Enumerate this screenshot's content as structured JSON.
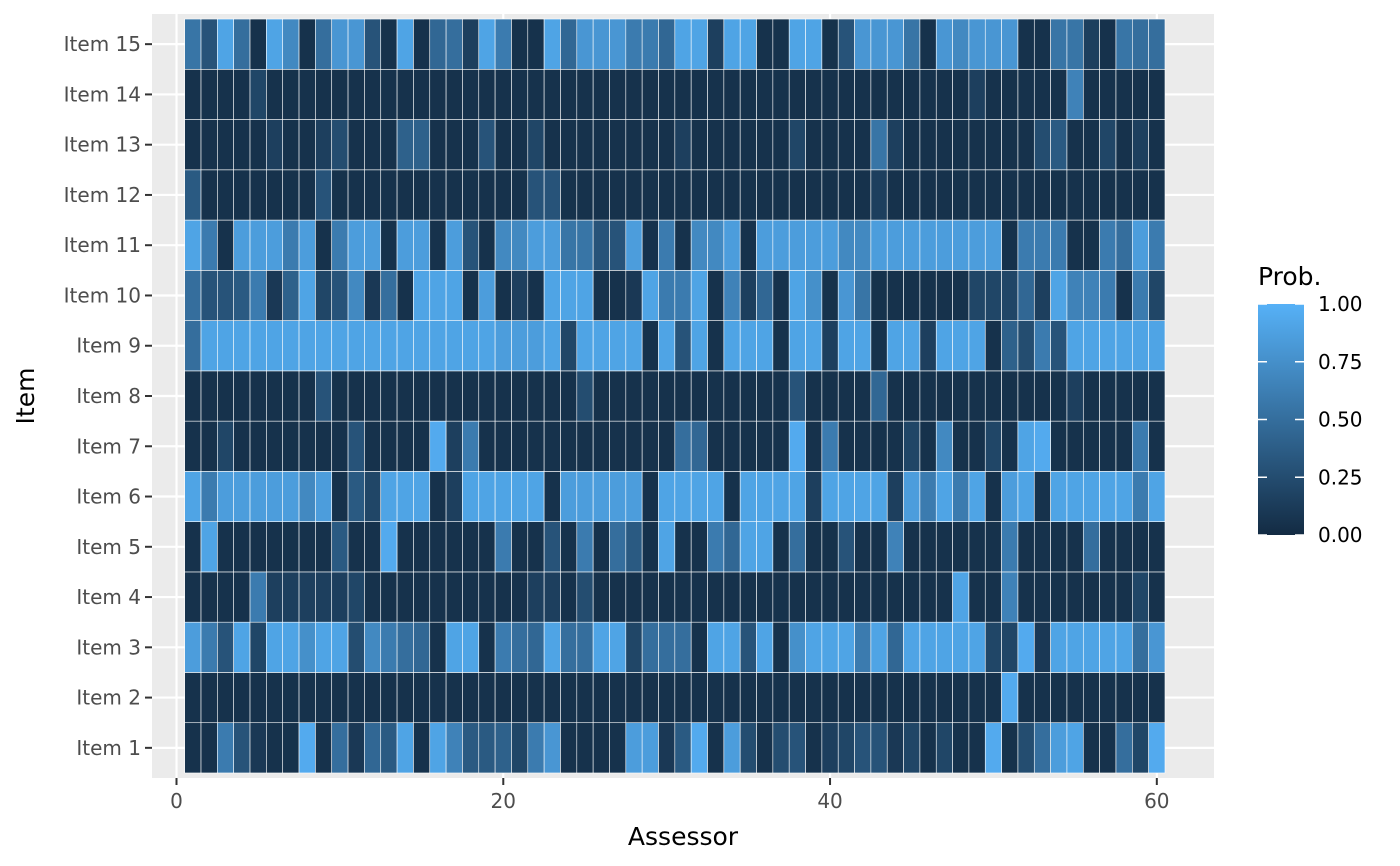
{
  "chart_data": {
    "type": "heatmap",
    "title": "",
    "xlabel": "Assessor",
    "ylabel": "Item",
    "xlim": [
      -1.5,
      63.5
    ],
    "x_ticks": [
      {
        "value": 0,
        "label": "0"
      },
      {
        "value": 20,
        "label": "20"
      },
      {
        "value": 40,
        "label": "40"
      },
      {
        "value": 60,
        "label": "60"
      }
    ],
    "x": [
      1,
      2,
      3,
      4,
      5,
      6,
      7,
      8,
      9,
      10,
      11,
      12,
      13,
      14,
      15,
      16,
      17,
      18,
      19,
      20,
      21,
      22,
      23,
      24,
      25,
      26,
      27,
      28,
      29,
      30,
      31,
      32,
      33,
      34,
      35,
      36,
      37,
      38,
      39,
      40,
      41,
      42,
      43,
      44,
      45,
      46,
      47,
      48,
      49,
      50,
      51,
      52,
      53,
      54,
      55,
      56,
      57,
      58,
      59,
      60
    ],
    "y": [
      "Item 1",
      "Item 2",
      "Item 3",
      "Item 4",
      "Item 5",
      "Item 6",
      "Item 7",
      "Item 8",
      "Item 9",
      "Item 10",
      "Item 11",
      "Item 12",
      "Item 13",
      "Item 14",
      "Item 15"
    ],
    "grid": true,
    "legend": {
      "title": "Prob.",
      "position": "right",
      "range": [
        0,
        1
      ],
      "ticks": [
        {
          "value": 0,
          "label": "0.00"
        },
        {
          "value": 0.25,
          "label": "0.25"
        },
        {
          "value": 0.5,
          "label": "0.50"
        },
        {
          "value": 0.75,
          "label": "0.75"
        },
        {
          "value": 1,
          "label": "1.00"
        }
      ]
    },
    "colors": {
      "low": "#132B43",
      "high": "#56B1F7",
      "panel_bg": "#EBEBEB",
      "grid_major": "#FFFFFF",
      "tile_border": "#FFFFFF"
    },
    "values": [
      [
        0.05,
        0.05,
        0.6,
        0.3,
        0.1,
        0.05,
        0.05,
        0.95,
        0.05,
        0.5,
        0.1,
        0.45,
        0.35,
        0.9,
        0.05,
        0.9,
        0.65,
        0.35,
        0.35,
        0.4,
        0.2,
        0.6,
        0.8,
        0.05,
        0.05,
        0.05,
        0.05,
        0.85,
        0.85,
        0.1,
        0.35,
        0.95,
        0.05,
        0.85,
        0.25,
        0.05,
        0.25,
        0.3,
        0.05,
        0.15,
        0.2,
        0.3,
        0.3,
        0.1,
        0.2,
        0.05,
        0.2,
        0.05,
        0.05,
        0.95,
        0.05,
        0.25,
        0.5,
        0.85,
        0.9,
        0.05,
        0.05,
        0.5,
        0.2,
        0.95
      ],
      [
        0.05,
        0.05,
        0.05,
        0.05,
        0.05,
        0.05,
        0.05,
        0.05,
        0.05,
        0.05,
        0.05,
        0.05,
        0.05,
        0.05,
        0.05,
        0.05,
        0.05,
        0.05,
        0.05,
        0.05,
        0.05,
        0.05,
        0.05,
        0.05,
        0.05,
        0.05,
        0.05,
        0.05,
        0.05,
        0.05,
        0.05,
        0.05,
        0.05,
        0.05,
        0.05,
        0.05,
        0.05,
        0.05,
        0.05,
        0.05,
        0.05,
        0.05,
        0.05,
        0.05,
        0.05,
        0.05,
        0.05,
        0.05,
        0.05,
        0.05,
        0.95,
        0.05,
        0.05,
        0.05,
        0.05,
        0.05,
        0.05,
        0.05,
        0.05,
        0.05
      ],
      [
        0.85,
        0.6,
        0.3,
        0.9,
        0.2,
        0.9,
        0.9,
        0.75,
        0.9,
        0.9,
        0.25,
        0.7,
        0.6,
        0.5,
        0.45,
        0.05,
        0.9,
        0.9,
        0.05,
        0.6,
        0.5,
        0.45,
        0.9,
        0.5,
        0.5,
        0.9,
        0.9,
        0.2,
        0.5,
        0.5,
        0.5,
        0.05,
        0.9,
        0.9,
        0.3,
        0.9,
        0.05,
        0.75,
        0.9,
        0.9,
        0.9,
        0.6,
        0.9,
        0.45,
        0.9,
        0.9,
        0.9,
        0.9,
        0.9,
        0.2,
        0.2,
        0.95,
        0.1,
        0.9,
        0.9,
        0.9,
        0.9,
        0.9,
        0.5,
        0.8
      ],
      [
        0.05,
        0.05,
        0.05,
        0.05,
        0.6,
        0.15,
        0.15,
        0.15,
        0.15,
        0.15,
        0.2,
        0.05,
        0.05,
        0.05,
        0.05,
        0.05,
        0.05,
        0.05,
        0.05,
        0.05,
        0.05,
        0.15,
        0.15,
        0.05,
        0.25,
        0.05,
        0.05,
        0.05,
        0.05,
        0.05,
        0.05,
        0.05,
        0.05,
        0.05,
        0.05,
        0.05,
        0.05,
        0.05,
        0.05,
        0.05,
        0.05,
        0.05,
        0.05,
        0.05,
        0.05,
        0.05,
        0.05,
        0.9,
        0.05,
        0.05,
        0.65,
        0.05,
        0.05,
        0.05,
        0.05,
        0.05,
        0.05,
        0.05,
        0.2,
        0.05
      ],
      [
        0.05,
        0.9,
        0.05,
        0.05,
        0.05,
        0.05,
        0.05,
        0.05,
        0.05,
        0.35,
        0.05,
        0.05,
        0.95,
        0.05,
        0.05,
        0.05,
        0.05,
        0.05,
        0.05,
        0.6,
        0.05,
        0.05,
        0.3,
        0.05,
        0.6,
        0.05,
        0.5,
        0.35,
        0.05,
        0.9,
        0.05,
        0.05,
        0.6,
        0.45,
        0.9,
        0.9,
        0.05,
        0.5,
        0.05,
        0.05,
        0.3,
        0.05,
        0.05,
        0.65,
        0.05,
        0.05,
        0.05,
        0.05,
        0.05,
        0.05,
        0.6,
        0.05,
        0.05,
        0.05,
        0.05,
        0.5,
        0.05,
        0.05,
        0.05,
        0.05
      ],
      [
        0.9,
        0.6,
        0.85,
        0.85,
        0.85,
        0.85,
        0.85,
        0.7,
        0.85,
        0.05,
        0.35,
        0.2,
        0.9,
        0.9,
        0.9,
        0.05,
        0.15,
        0.9,
        0.9,
        0.9,
        0.9,
        0.9,
        0.05,
        0.85,
        0.85,
        0.85,
        0.85,
        0.85,
        0.05,
        0.9,
        0.9,
        0.9,
        0.9,
        0.05,
        0.9,
        0.9,
        0.9,
        0.9,
        0.15,
        0.9,
        0.9,
        0.9,
        0.9,
        0.15,
        0.85,
        0.6,
        0.9,
        0.6,
        0.9,
        0.05,
        0.85,
        0.9,
        0.05,
        0.9,
        0.9,
        0.9,
        0.9,
        0.9,
        0.6,
        0.9
      ],
      [
        0.05,
        0.05,
        0.2,
        0.05,
        0.05,
        0.05,
        0.05,
        0.05,
        0.05,
        0.05,
        0.3,
        0.05,
        0.05,
        0.05,
        0.05,
        0.95,
        0.15,
        0.6,
        0.05,
        0.05,
        0.05,
        0.05,
        0.05,
        0.05,
        0.05,
        0.05,
        0.05,
        0.05,
        0.05,
        0.05,
        0.5,
        0.45,
        0.05,
        0.05,
        0.05,
        0.05,
        0.05,
        0.95,
        0.05,
        0.6,
        0.05,
        0.05,
        0.05,
        0.05,
        0.2,
        0.05,
        0.7,
        0.05,
        0.05,
        0.2,
        0.05,
        0.9,
        0.95,
        0.05,
        0.05,
        0.05,
        0.05,
        0.05,
        0.6,
        0.05
      ],
      [
        0.05,
        0.05,
        0.05,
        0.05,
        0.05,
        0.05,
        0.05,
        0.05,
        0.3,
        0.05,
        0.05,
        0.05,
        0.05,
        0.05,
        0.05,
        0.05,
        0.05,
        0.05,
        0.05,
        0.05,
        0.05,
        0.05,
        0.05,
        0.05,
        0.25,
        0.05,
        0.05,
        0.05,
        0.05,
        0.05,
        0.05,
        0.05,
        0.05,
        0.05,
        0.05,
        0.05,
        0.05,
        0.3,
        0.05,
        0.05,
        0.05,
        0.05,
        0.45,
        0.05,
        0.05,
        0.05,
        0.05,
        0.05,
        0.05,
        0.05,
        0.05,
        0.05,
        0.05,
        0.05,
        0.15,
        0.05,
        0.05,
        0.05,
        0.05,
        0.05
      ],
      [
        0.5,
        0.9,
        0.9,
        0.9,
        0.9,
        0.9,
        0.9,
        0.9,
        0.9,
        0.9,
        0.9,
        0.9,
        0.9,
        0.9,
        0.9,
        0.9,
        0.9,
        0.9,
        0.9,
        0.85,
        0.85,
        0.85,
        0.9,
        0.2,
        0.9,
        0.9,
        0.9,
        0.9,
        0.05,
        0.9,
        0.3,
        0.9,
        0.05,
        0.9,
        0.9,
        0.9,
        0.05,
        0.9,
        0.9,
        0.15,
        0.9,
        0.9,
        0.05,
        0.9,
        0.9,
        0.15,
        0.9,
        0.9,
        0.9,
        0.05,
        0.4,
        0.25,
        0.6,
        0.3,
        0.9,
        0.9,
        0.9,
        0.9,
        0.9,
        0.9
      ],
      [
        0.5,
        0.3,
        0.3,
        0.35,
        0.6,
        0.1,
        0.4,
        0.9,
        0.2,
        0.3,
        0.7,
        0.1,
        0.5,
        0.05,
        0.9,
        0.9,
        0.9,
        0.05,
        0.85,
        0.05,
        0.15,
        0.05,
        0.9,
        0.9,
        0.9,
        0.05,
        0.05,
        0.1,
        0.9,
        0.6,
        0.6,
        0.9,
        0.05,
        0.65,
        0.15,
        0.45,
        0.05,
        0.9,
        0.75,
        0.05,
        0.8,
        0.55,
        0.05,
        0.05,
        0.05,
        0.05,
        0.05,
        0.05,
        0.2,
        0.2,
        0.2,
        0.45,
        0.15,
        0.9,
        0.65,
        0.65,
        0.6,
        0.05,
        0.6,
        0.2
      ],
      [
        0.9,
        0.6,
        0.05,
        0.85,
        0.85,
        0.85,
        0.6,
        0.85,
        0.05,
        0.6,
        0.85,
        0.85,
        0.05,
        0.85,
        0.85,
        0.05,
        0.85,
        0.3,
        0.05,
        0.7,
        0.7,
        0.85,
        0.85,
        0.55,
        0.55,
        0.3,
        0.3,
        0.85,
        0.05,
        0.6,
        0.05,
        0.7,
        0.7,
        0.85,
        0.05,
        0.85,
        0.85,
        0.85,
        0.85,
        0.85,
        0.7,
        0.7,
        0.85,
        0.85,
        0.85,
        0.85,
        0.85,
        0.85,
        0.85,
        0.85,
        0.05,
        0.6,
        0.6,
        0.6,
        0.05,
        0.05,
        0.6,
        0.5,
        0.85,
        0.6
      ],
      [
        0.35,
        0.05,
        0.05,
        0.05,
        0.05,
        0.05,
        0.05,
        0.05,
        0.3,
        0.05,
        0.05,
        0.05,
        0.05,
        0.05,
        0.05,
        0.05,
        0.05,
        0.05,
        0.05,
        0.05,
        0.05,
        0.3,
        0.3,
        0.05,
        0.05,
        0.05,
        0.05,
        0.05,
        0.05,
        0.05,
        0.05,
        0.05,
        0.05,
        0.05,
        0.05,
        0.05,
        0.05,
        0.05,
        0.05,
        0.05,
        0.05,
        0.05,
        0.15,
        0.05,
        0.05,
        0.05,
        0.05,
        0.05,
        0.05,
        0.05,
        0.05,
        0.05,
        0.05,
        0.05,
        0.05,
        0.05,
        0.05,
        0.05,
        0.05,
        0.05
      ],
      [
        0.05,
        0.05,
        0.05,
        0.05,
        0.05,
        0.15,
        0.05,
        0.05,
        0.15,
        0.25,
        0.05,
        0.05,
        0.05,
        0.4,
        0.4,
        0.05,
        0.05,
        0.05,
        0.3,
        0.05,
        0.05,
        0.2,
        0.05,
        0.05,
        0.05,
        0.05,
        0.05,
        0.05,
        0.05,
        0.05,
        0.15,
        0.05,
        0.05,
        0.05,
        0.05,
        0.05,
        0.05,
        0.2,
        0.05,
        0.05,
        0.05,
        0.05,
        0.55,
        0.15,
        0.05,
        0.05,
        0.05,
        0.05,
        0.05,
        0.05,
        0.05,
        0.05,
        0.25,
        0.35,
        0.05,
        0.05,
        0.2,
        0.05,
        0.15,
        0.05
      ],
      [
        0.05,
        0.05,
        0.05,
        0.05,
        0.2,
        0.05,
        0.05,
        0.05,
        0.05,
        0.05,
        0.05,
        0.05,
        0.05,
        0.05,
        0.05,
        0.05,
        0.05,
        0.05,
        0.05,
        0.05,
        0.05,
        0.05,
        0.05,
        0.05,
        0.05,
        0.05,
        0.05,
        0.05,
        0.05,
        0.05,
        0.05,
        0.05,
        0.05,
        0.05,
        0.05,
        0.05,
        0.05,
        0.05,
        0.05,
        0.05,
        0.05,
        0.05,
        0.05,
        0.05,
        0.05,
        0.05,
        0.05,
        0.05,
        0.15,
        0.05,
        0.05,
        0.05,
        0.05,
        0.05,
        0.65,
        0.05,
        0.05,
        0.05,
        0.05,
        0.05
      ],
      [
        0.55,
        0.3,
        0.9,
        0.5,
        0.05,
        0.9,
        0.7,
        0.05,
        0.5,
        0.8,
        0.8,
        0.3,
        0.05,
        0.9,
        0.05,
        0.45,
        0.5,
        0.15,
        0.9,
        0.6,
        0.05,
        0.05,
        0.9,
        0.45,
        0.8,
        0.8,
        0.8,
        0.6,
        0.6,
        0.45,
        0.9,
        0.9,
        0.15,
        0.9,
        0.9,
        0.05,
        0.05,
        0.9,
        0.9,
        0.05,
        0.3,
        0.8,
        0.8,
        0.8,
        0.55,
        0.05,
        0.8,
        0.7,
        0.8,
        0.8,
        0.8,
        0.05,
        0.05,
        0.55,
        0.55,
        0.15,
        0.05,
        0.55,
        0.5,
        0.5
      ]
    ]
  }
}
